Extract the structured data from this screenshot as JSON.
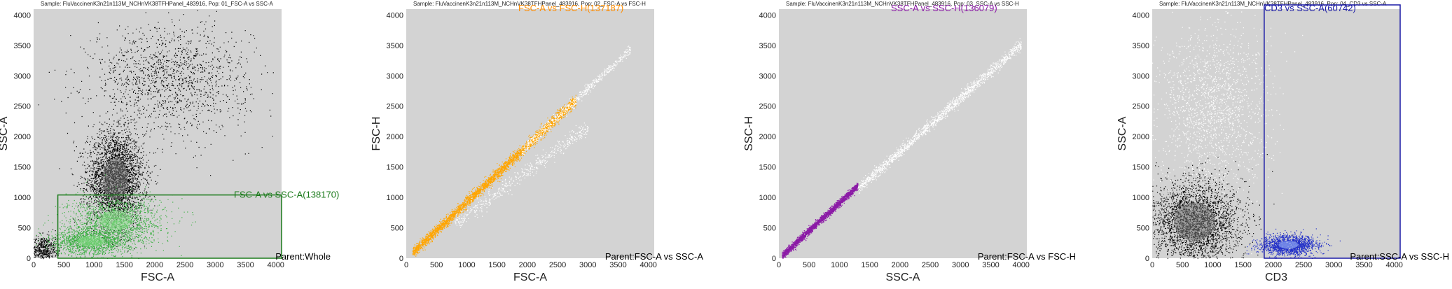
{
  "chart_data": [
    {
      "type": "scatter",
      "sample_title": "Sample: FluVaccinenK3n21n113M_NCHnVK38TFHPanel_483916, Pop: 01_FSC-A vs SSC-A",
      "xlabel": "FSC-A",
      "ylabel": "SSC-A",
      "xlim": [
        0,
        4096
      ],
      "ylim": [
        0,
        4096
      ],
      "xticks": [
        "0",
        "500",
        "1000",
        "1500",
        "2000",
        "2500",
        "3000",
        "3500",
        "4000"
      ],
      "yticks": [
        "0",
        "500",
        "1000",
        "1500",
        "2000",
        "2500",
        "3000",
        "3500",
        "4000"
      ],
      "gate": {
        "label": "FSC-A vs SSC-A(138170)",
        "color": "#1a7a1a",
        "x_range": [
          400,
          4096
        ],
        "y_range": [
          0,
          1040
        ]
      },
      "parent": "Parent:Whole",
      "background_color": "#d3d3d3",
      "event_color": "#000000",
      "gated_event_color": "#3cb043",
      "populations": [
        {
          "cx": 1350,
          "cy": 1300,
          "sx": 230,
          "sy": 380,
          "count": 3200,
          "gated": false
        },
        {
          "cx": 2250,
          "cy": 2950,
          "sx": 650,
          "sy": 450,
          "count": 1400,
          "gated": false
        },
        {
          "cx": 150,
          "cy": 150,
          "sx": 120,
          "sy": 120,
          "count": 500,
          "gated": false
        },
        {
          "cx": 1350,
          "cy": 620,
          "sx": 400,
          "sy": 200,
          "count": 1500,
          "gated": true
        },
        {
          "cx": 950,
          "cy": 280,
          "sx": 320,
          "sy": 110,
          "count": 1500,
          "gated": true
        }
      ]
    },
    {
      "type": "scatter",
      "sample_title": "Sample: FluVaccinenK3n21n113M_NCHnVK38TFHPanel_483916, Pop: 02_FSC-A vs FSC-H",
      "xlabel": "FSC-A",
      "ylabel": "FSC-H",
      "xlim": [
        0,
        4096
      ],
      "ylim": [
        0,
        4096
      ],
      "xticks": [
        "0",
        "500",
        "1000",
        "1500",
        "2000",
        "2500",
        "3000",
        "3500",
        "4000"
      ],
      "yticks": [
        "0",
        "500",
        "1000",
        "1500",
        "2000",
        "2500",
        "3000",
        "3500",
        "4000"
      ],
      "gate": {
        "label": "FSC-A vs FSC-H(137187)",
        "color": "#ff8c00"
      },
      "parent": "Parent:FSC-A vs SSC-A",
      "background_color": "#d3d3d3",
      "event_color": "#ffffff",
      "gated_event_color": "#ffa500",
      "populations": [
        {
          "diag_from": 100,
          "diag_to": 2800,
          "slope": 0.93,
          "spread": 45,
          "count": 3400,
          "gated": true
        },
        {
          "diag_from": 1900,
          "diag_to": 3700,
          "slope": 0.93,
          "spread": 40,
          "count": 600,
          "gated": false
        },
        {
          "diag_from": 800,
          "diag_to": 3000,
          "slope": 0.72,
          "spread": 70,
          "count": 500,
          "gated": false
        }
      ]
    },
    {
      "type": "scatter",
      "sample_title": "Sample: FluVaccinenK3n21n113M_NCHnVK38TFHPanel_483916, Pop: 03_SSC-A vs SSC-H",
      "xlabel": "SSC-A",
      "ylabel": "SSC-H",
      "xlim": [
        0,
        4096
      ],
      "ylim": [
        0,
        4096
      ],
      "xticks": [
        "0",
        "500",
        "1000",
        "1500",
        "2000",
        "2500",
        "3000",
        "3500",
        "4000"
      ],
      "yticks": [
        "0",
        "500",
        "1000",
        "1500",
        "2000",
        "2500",
        "3000",
        "3500",
        "4000"
      ],
      "gate": {
        "label": "SSC-A vs SSC-H(136079)",
        "color": "#8b1aa6"
      },
      "parent": "Parent:FSC-A vs FSC-H",
      "background_color": "#d3d3d3",
      "event_color": "#ffffff",
      "gated_event_color": "#8b1aa6",
      "populations": [
        {
          "diag_from": 50,
          "diag_to": 1300,
          "slope": 0.92,
          "spread": 30,
          "count": 2400,
          "gated": true
        },
        {
          "diag_from": 1300,
          "diag_to": 4000,
          "slope": 0.88,
          "spread": 45,
          "count": 1500,
          "gated": false
        }
      ]
    },
    {
      "type": "scatter",
      "sample_title": "Sample: FluVaccinenK3n21n113M_NCHnVK38TFHPanel_483916, Pop: 04_CD3 vs SSC-A",
      "xlabel": "CD3",
      "ylabel": "SSC-A",
      "xlim": [
        0,
        4096
      ],
      "ylim": [
        0,
        4096
      ],
      "xticks": [
        "0",
        "500",
        "1000",
        "1500",
        "2000",
        "2500",
        "3000",
        "3500",
        "4000"
      ],
      "yticks": [
        "0",
        "500",
        "1000",
        "1500",
        "2000",
        "2500",
        "3000",
        "3500",
        "4000"
      ],
      "gate": {
        "label": "CD3 vs SSC-A(60742)",
        "color": "#1a1aa6",
        "x_range": [
          1850,
          4096
        ],
        "y_range": [
          0,
          4096
        ]
      },
      "parent": "Parent:SSC-A vs SSC-H",
      "background_color": "#d3d3d3",
      "event_color": "#ffffff",
      "gated_event_color": "#2432c8",
      "populations": [
        {
          "cx": 700,
          "cy": 600,
          "sx": 380,
          "sy": 350,
          "count": 3000,
          "gated": false,
          "dark": true
        },
        {
          "cx": 1000,
          "cy": 2400,
          "sx": 450,
          "sy": 700,
          "count": 1800,
          "gated": false
        },
        {
          "cx": 2250,
          "cy": 220,
          "sx": 230,
          "sy": 80,
          "count": 1700,
          "gated": true
        }
      ]
    }
  ]
}
